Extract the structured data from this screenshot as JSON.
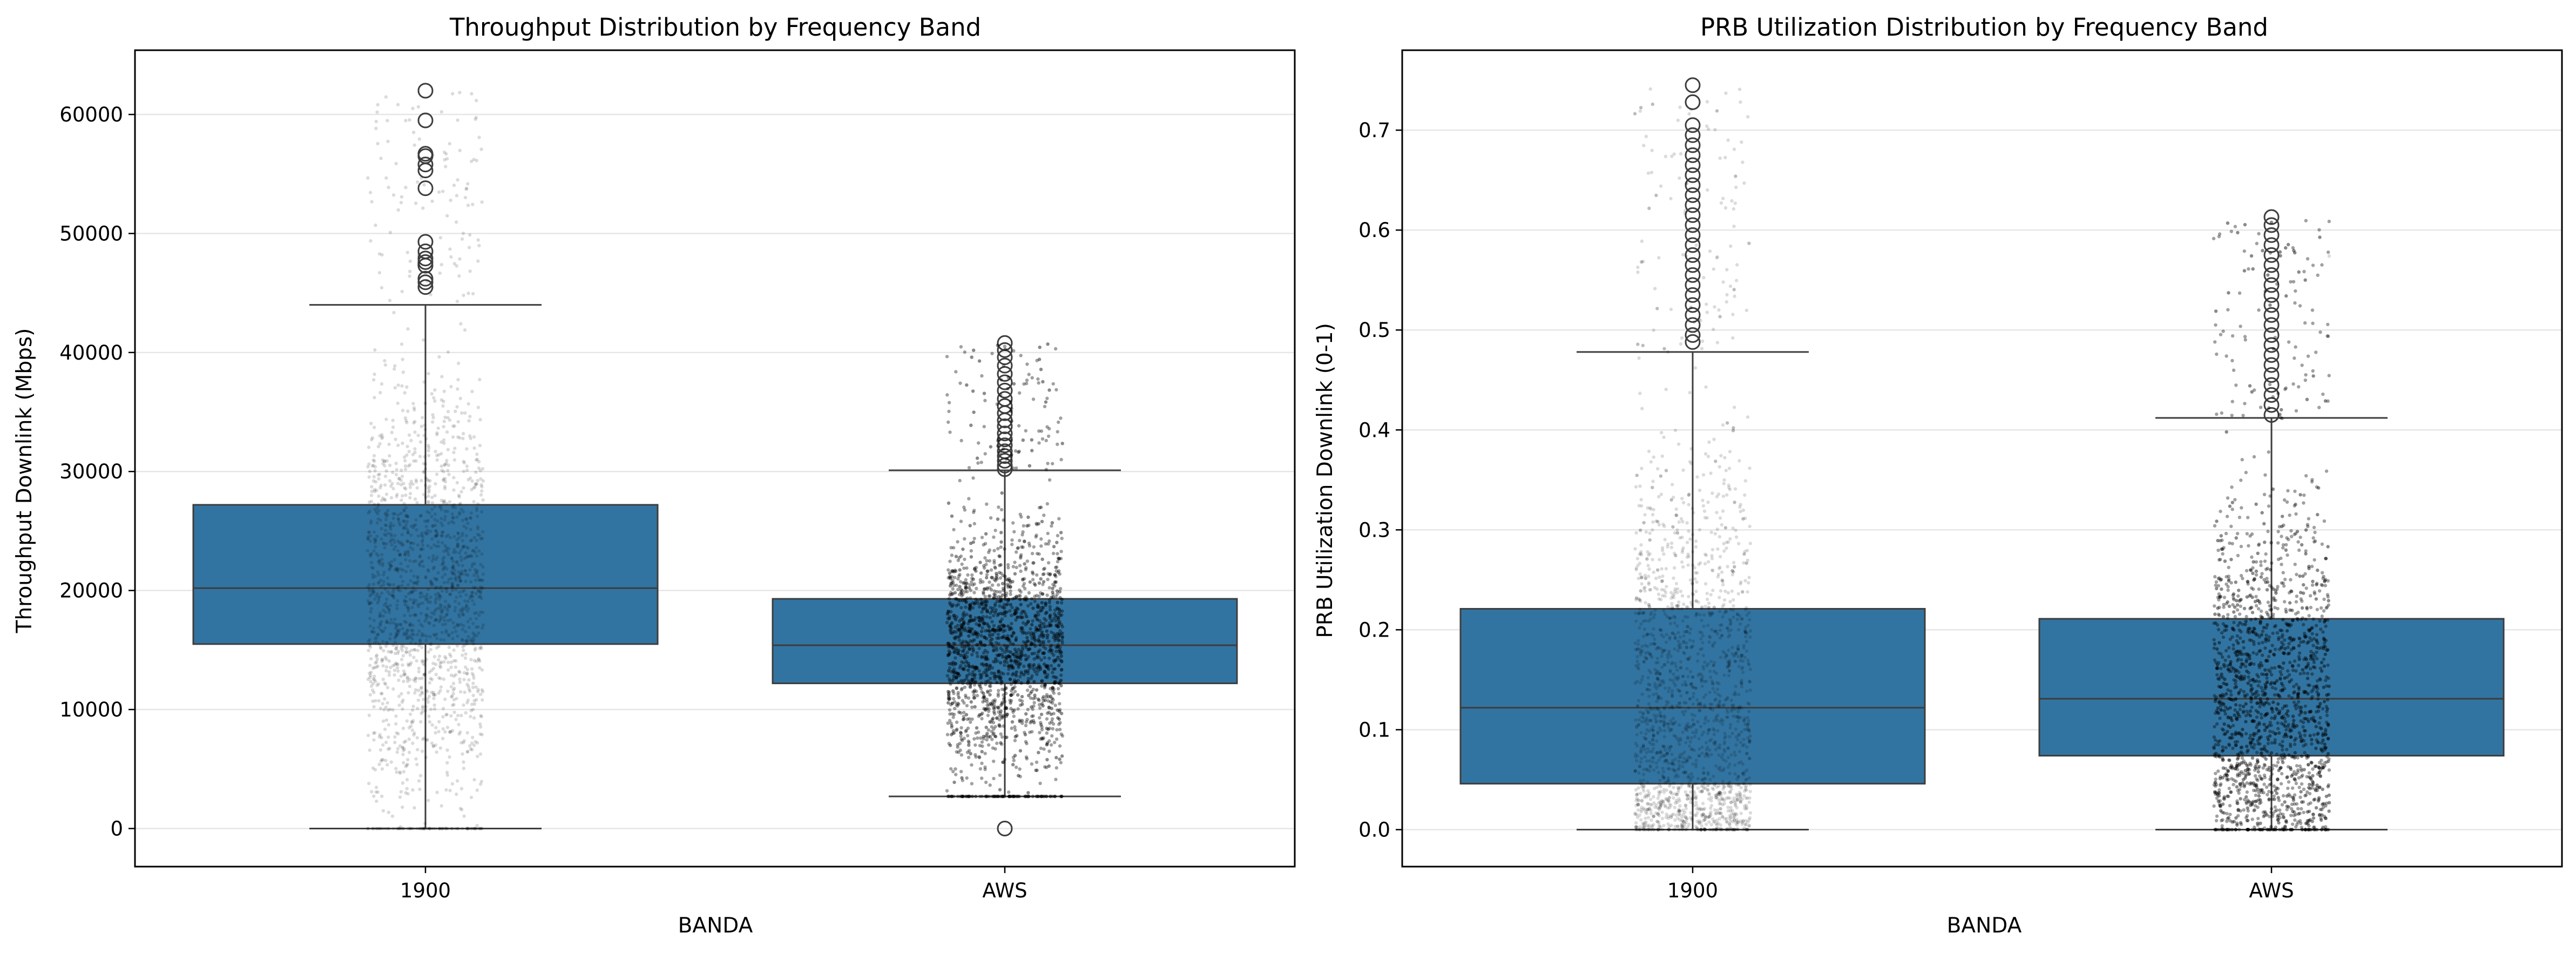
{
  "chart_data": [
    {
      "type": "box",
      "title": "Throughput Distribution by Frequency Band",
      "xlabel": "BANDA",
      "ylabel": "Throughput Downlink (Mbps)",
      "categories": [
        "1900",
        "AWS"
      ],
      "ylim": [
        -3200,
        65400
      ],
      "yticks": [
        0,
        10000,
        20000,
        30000,
        40000,
        50000,
        60000
      ],
      "grid": "y",
      "box_color": "#3274a1",
      "jitter_points": "black, semi-transparent, one point per cell",
      "boxes": [
        {
          "category": "1900",
          "whisker_low": 0,
          "q1": 15500,
          "median": 20200,
          "q3": 27200,
          "whisker_high": 44000,
          "outliers": [
            45500,
            45900,
            46200,
            47300,
            47600,
            47900,
            48500,
            49300,
            53800,
            55300,
            55800,
            56500,
            56700,
            59500,
            62000
          ],
          "jitter_count": 1800
        },
        {
          "category": "AWS",
          "whisker_low": 2700,
          "q1": 12200,
          "median": 15400,
          "q3": 19300,
          "whisker_high": 30100,
          "outliers": [
            0,
            30200,
            30500,
            30900,
            31300,
            31700,
            32200,
            32700,
            33200,
            33800,
            34300,
            34900,
            35500,
            36100,
            36800,
            37500,
            38200,
            38900,
            39600,
            40200,
            40800
          ],
          "jitter_count": 6000
        }
      ]
    },
    {
      "type": "box",
      "title": "PRB Utilization Distribution by Frequency Band",
      "xlabel": "BANDA",
      "ylabel": "PRB Utilization Downlink (0-1)",
      "categories": [
        "1900",
        "AWS"
      ],
      "ylim": [
        -0.037,
        0.78
      ],
      "yticks": [
        0.0,
        0.1,
        0.2,
        0.3,
        0.4,
        0.5,
        0.6,
        0.7
      ],
      "grid": "y",
      "box_color": "#3274a1",
      "jitter_points": "black, semi-transparent, one point per cell",
      "boxes": [
        {
          "category": "1900",
          "whisker_low": 0.0,
          "q1": 0.046,
          "median": 0.122,
          "q3": 0.221,
          "whisker_high": 0.478,
          "outliers": [
            0.488,
            0.495,
            0.505,
            0.515,
            0.525,
            0.535,
            0.545,
            0.555,
            0.565,
            0.575,
            0.585,
            0.595,
            0.605,
            0.615,
            0.625,
            0.635,
            0.645,
            0.655,
            0.665,
            0.675,
            0.685,
            0.695,
            0.705,
            0.728,
            0.745
          ],
          "jitter_count": 2000
        },
        {
          "category": "AWS",
          "whisker_low": 0.0,
          "q1": 0.074,
          "median": 0.131,
          "q3": 0.211,
          "whisker_high": 0.412,
          "outliers": [
            0.415,
            0.425,
            0.435,
            0.445,
            0.455,
            0.465,
            0.475,
            0.485,
            0.495,
            0.505,
            0.515,
            0.525,
            0.535,
            0.545,
            0.555,
            0.565,
            0.575,
            0.585,
            0.595,
            0.605,
            0.613
          ],
          "jitter_count": 6000
        }
      ]
    }
  ]
}
